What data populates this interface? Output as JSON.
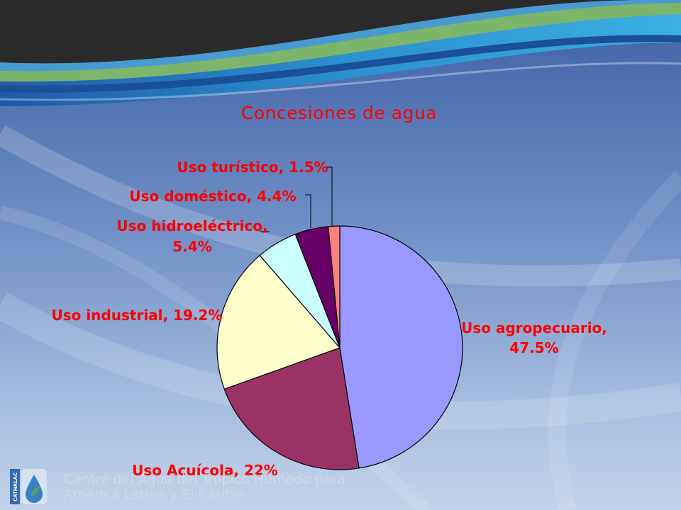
{
  "colors": {
    "label_red": "#ff0000",
    "background_top": "#2a2a2a",
    "background_blue": "#4f6fb0"
  },
  "chart_data": {
    "type": "pie",
    "title": "Concesiones de agua",
    "start_angle_deg": 0,
    "direction": "clockwise",
    "series": [
      {
        "slices": [
          {
            "label": "Uso agropecuario",
            "value": 47.5,
            "text": "Uso agropecuario,",
            "text2": "47.5%",
            "color": "#9999ff"
          },
          {
            "label": "Uso Acuícola",
            "value": 22,
            "text": "Uso Acuícola, 22%",
            "color": "#993366"
          },
          {
            "label": "Uso industrial",
            "value": 19.2,
            "text": "Uso industrial, 19.2%",
            "color": "#ffffcc"
          },
          {
            "label": "Uso hidroeléctrico",
            "value": 5.4,
            "text": "Uso hidroeléctrico,",
            "text2": "5.4%",
            "color": "#ccffff"
          },
          {
            "label": "Uso doméstico",
            "value": 4.4,
            "text": "Uso doméstico, 4.4%",
            "color": "#660066"
          },
          {
            "label": "Uso turístico",
            "value": 1.5,
            "text": "Uso turístico, 1.5%",
            "color": "#ff8080"
          }
        ]
      }
    ]
  },
  "footer": {
    "logo_text": "CATHALAC",
    "line1": "Centro del Agua del Trópico Húmedo para",
    "line2": "América Latina y El Caribe"
  }
}
